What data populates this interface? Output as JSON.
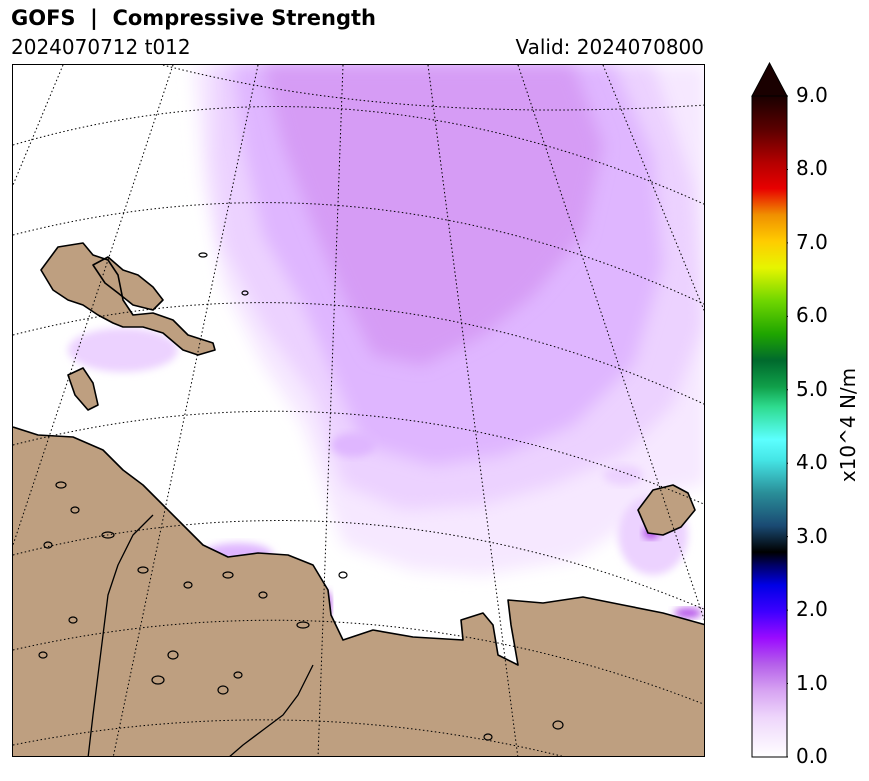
{
  "header": {
    "title": "GOFS  |  Compressive Strength",
    "run_label": "2024070712 t012",
    "valid_label": "Valid: 2024070800"
  },
  "colorbar": {
    "label": "x10^4 N/m",
    "min": 0.0,
    "max": 9.0,
    "extend": "max",
    "ticks": [
      "0.0",
      "1.0",
      "2.0",
      "3.0",
      "4.0",
      "5.0",
      "6.0",
      "7.0",
      "8.0",
      "9.0"
    ]
  },
  "map": {
    "land_color": "#be9f80",
    "coastline_color": "#000000",
    "gridline_style": "dotted",
    "field_colors": {
      "lightest": "#f6e8ff",
      "light": "#ecd2ff",
      "medium": "#dfb6ff",
      "dense": "#d69cf5",
      "peak": "#b24ee8"
    }
  }
}
